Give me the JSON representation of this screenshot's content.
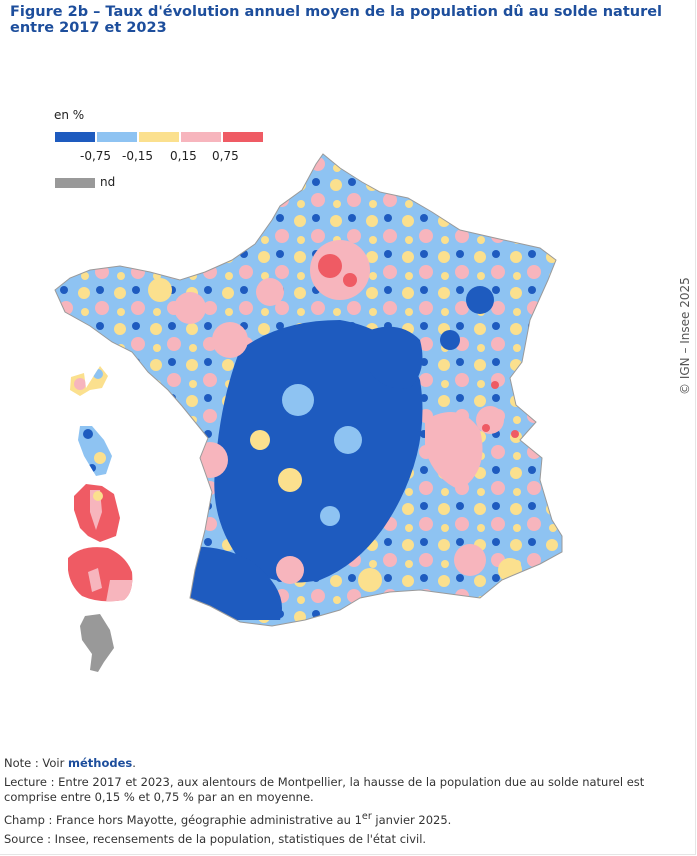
{
  "title": "Figure 2b – Taux d'évolution annuel moyen de la population dû au solde naturel entre 2017 et 2023",
  "legend": {
    "unit": "en %",
    "classes": [
      {
        "color": "#1e5bbf",
        "label": "below -0,75"
      },
      {
        "color": "#8ec3f2",
        "label": "-0,75 to -0,15"
      },
      {
        "color": "#fbe08e",
        "label": "-0,15 to 0,15"
      },
      {
        "color": "#f7b5bd",
        "label": "0,15 to 0,75"
      },
      {
        "color": "#ef5b64",
        "label": "above 0,75"
      }
    ],
    "ticks": [
      "-0,75",
      "-0,15",
      "0,15",
      "0,75"
    ],
    "nd_color": "#999999",
    "nd_label": "nd"
  },
  "credit": "© IGN – Insee 2025",
  "notes": {
    "note_prefix": "Note : Voir ",
    "note_link": "méthodes",
    "note_suffix": ".",
    "lecture": "Lecture : Entre 2017 et 2023, aux alentours de Montpellier, la hausse de la population due au solde naturel est comprise entre 0,15 % et 0,75 % par an en moyenne.",
    "champ_prefix": "Champ : France hors Mayotte, géographie administrative au 1",
    "champ_sup": "er",
    "champ_suffix": " janvier 2025.",
    "source": "Source : Insee, recensements de la population, statistiques de l'état civil."
  }
}
